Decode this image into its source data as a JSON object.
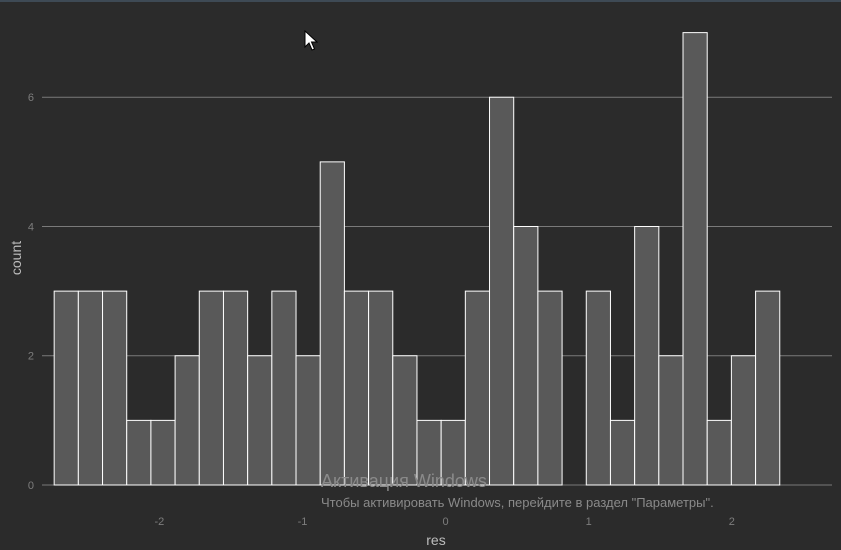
{
  "chart_data": {
    "type": "bar",
    "xlabel": "res",
    "ylabel": "count",
    "bins_start": -2.735,
    "bin_width": 0.169,
    "counts": [
      3,
      3,
      3,
      1,
      1,
      2,
      3,
      3,
      2,
      3,
      2,
      5,
      3,
      3,
      2,
      1,
      1,
      3,
      6,
      4,
      3,
      0,
      3,
      1,
      4,
      2,
      7,
      1,
      2,
      3
    ],
    "xlim": [
      -2.82,
      2.7
    ],
    "ylim": [
      0,
      7.35
    ],
    "x_ticks": [
      -2,
      -1,
      0,
      1,
      2
    ],
    "x_tick_labels": [
      "-2",
      "-1",
      "0",
      "1",
      "2"
    ],
    "y_ticks": [
      0,
      2,
      4,
      6
    ],
    "y_tick_labels": [
      "0",
      "2",
      "4",
      "6"
    ],
    "grid": "horizontal",
    "colors": {
      "bar_fill": "#595959",
      "bar_stroke": "#ffffff",
      "background": "#2b2b2b",
      "grid": "#7a7a7a"
    }
  },
  "watermark": {
    "title": "Активация Windows",
    "subtitle": "Чтобы активировать Windows, перейдите в раздел \"Параметры\"."
  },
  "cursor": {
    "icon": "mouse-pointer-icon"
  }
}
